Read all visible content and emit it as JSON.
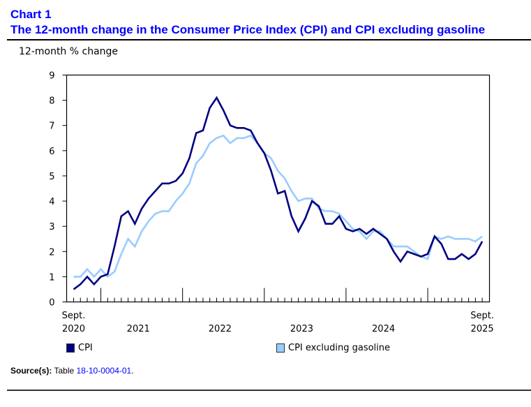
{
  "header": {
    "chart_number": "Chart 1",
    "title": "The 12-month change in the Consumer Price Index (CPI) and CPI excluding gasoline"
  },
  "source": {
    "label": "Source(s):",
    "prefix": "Table",
    "link_text": "18-10-0004-01",
    "suffix": "."
  },
  "chart_data": {
    "type": "line",
    "title": "The 12-month change in the Consumer Price Index (CPI) and CPI excluding gasoline",
    "xlabel": "",
    "ylabel": "12-month % change",
    "ylim": [
      0,
      9
    ],
    "yticks": [
      "0",
      "1",
      "2",
      "3",
      "4",
      "5",
      "6",
      "7",
      "8",
      "9"
    ],
    "grid": false,
    "legend_position": "bottom",
    "x_start": "2020-09",
    "x_end": "2025-09",
    "xtick_labels": [
      {
        "month_index": 0,
        "line1": "Sept.",
        "line2": "2020"
      },
      {
        "month_index": 9.5,
        "line1": "",
        "line2": "2021"
      },
      {
        "month_index": 21.5,
        "line1": "",
        "line2": "2022"
      },
      {
        "month_index": 33.5,
        "line1": "",
        "line2": "2023"
      },
      {
        "month_index": 45.5,
        "line1": "",
        "line2": "2024"
      },
      {
        "month_index": 60,
        "line1": "Sept.",
        "line2": "2025"
      }
    ],
    "year_boundary_indices": [
      4,
      16,
      28,
      40,
      52
    ],
    "series": [
      {
        "name": "CPI",
        "color": "#000080",
        "values": [
          0.5,
          0.7,
          1.0,
          0.7,
          1.0,
          1.1,
          2.2,
          3.4,
          3.6,
          3.1,
          3.7,
          4.1,
          4.4,
          4.7,
          4.7,
          4.8,
          5.1,
          5.7,
          6.7,
          6.8,
          7.7,
          8.1,
          7.6,
          7.0,
          6.9,
          6.9,
          6.8,
          6.3,
          5.9,
          5.2,
          4.3,
          4.4,
          3.4,
          2.8,
          3.3,
          4.0,
          3.8,
          3.1,
          3.1,
          3.4,
          2.9,
          2.8,
          2.9,
          2.7,
          2.9,
          2.7,
          2.5,
          2.0,
          1.6,
          2.0,
          1.9,
          1.8,
          1.9,
          2.6,
          2.3,
          1.7,
          1.7,
          1.9,
          1.7,
          1.9,
          2.4
        ]
      },
      {
        "name": "CPI excluding gasoline",
        "color": "#99ccff",
        "values": [
          1.0,
          1.0,
          1.3,
          1.0,
          1.3,
          1.0,
          1.2,
          1.9,
          2.5,
          2.2,
          2.8,
          3.2,
          3.5,
          3.6,
          3.6,
          4.0,
          4.3,
          4.7,
          5.5,
          5.8,
          6.3,
          6.5,
          6.6,
          6.3,
          6.5,
          6.5,
          6.6,
          6.3,
          5.9,
          5.7,
          5.2,
          4.9,
          4.4,
          4.0,
          4.1,
          4.1,
          3.7,
          3.6,
          3.6,
          3.5,
          3.2,
          2.9,
          2.8,
          2.5,
          2.8,
          2.8,
          2.5,
          2.2,
          2.2,
          2.2,
          2.0,
          1.8,
          1.7,
          2.6,
          2.5,
          2.6,
          2.5,
          2.5,
          2.5,
          2.4,
          2.6
        ]
      }
    ]
  }
}
